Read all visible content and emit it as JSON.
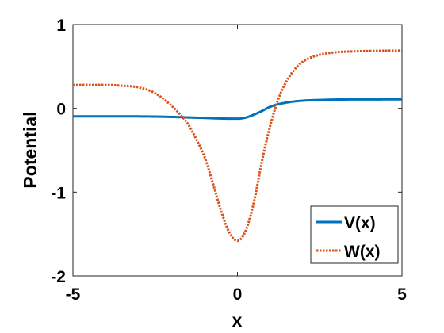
{
  "chart_data": {
    "type": "line",
    "title": "",
    "xlabel": "x",
    "ylabel": "Potential",
    "xlim": [
      -5,
      5
    ],
    "ylim": [
      -2,
      1
    ],
    "xticks": [
      -5,
      0,
      5
    ],
    "xtick_labels": [
      "-5",
      "0",
      "5"
    ],
    "yticks": [
      -2,
      -1,
      0,
      1
    ],
    "ytick_labels": [
      "-2",
      "-1",
      "0",
      "1"
    ],
    "grid": false,
    "legend_position": "bottom-right",
    "series": [
      {
        "name": "V(x)",
        "color": "#0072BD",
        "style": "solid",
        "x": [
          -5,
          -4,
          -3,
          -2.5,
          -2,
          -1.5,
          -1,
          -0.5,
          0,
          0.25,
          0.5,
          0.75,
          1,
          1.5,
          2,
          2.5,
          3,
          4,
          5
        ],
        "y": [
          -0.095,
          -0.095,
          -0.096,
          -0.098,
          -0.102,
          -0.108,
          -0.114,
          -0.121,
          -0.123,
          -0.11,
          -0.075,
          -0.03,
          0.02,
          0.07,
          0.092,
          0.1,
          0.105,
          0.107,
          0.108
        ]
      },
      {
        "name": "W(x)",
        "color": "#D95319",
        "style": "dotted",
        "x": [
          -5,
          -4,
          -3.5,
          -3,
          -2.5,
          -2,
          -1.75,
          -1.5,
          -1.25,
          -1,
          -0.75,
          -0.5,
          -0.25,
          0,
          0.25,
          0.5,
          0.75,
          1,
          1.25,
          1.5,
          1.75,
          2,
          2.5,
          3,
          3.5,
          4,
          5
        ],
        "y": [
          0.28,
          0.28,
          0.27,
          0.25,
          0.18,
          0.03,
          -0.07,
          -0.19,
          -0.37,
          -0.58,
          -0.89,
          -1.22,
          -1.48,
          -1.58,
          -1.46,
          -1.12,
          -0.62,
          -0.2,
          0.12,
          0.33,
          0.47,
          0.56,
          0.64,
          0.67,
          0.68,
          0.685,
          0.69
        ]
      }
    ]
  }
}
